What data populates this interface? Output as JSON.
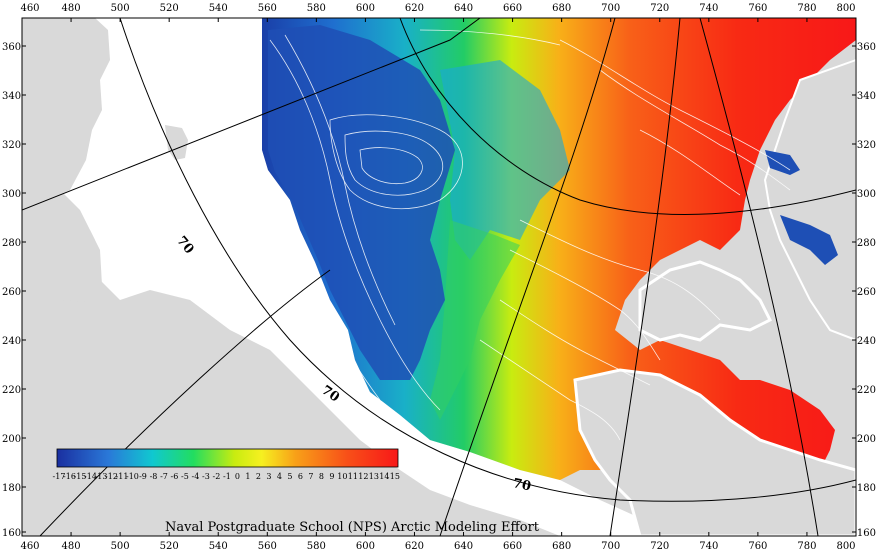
{
  "caption": "Naval Postgraduate School (NPS) Arctic Modeling Effort",
  "axes": {
    "x_ticks": [
      "460",
      "480",
      "500",
      "520",
      "540",
      "560",
      "580",
      "600",
      "620",
      "640",
      "660",
      "680",
      "700",
      "720",
      "740",
      "760",
      "780",
      "800"
    ],
    "y_ticks": [
      "360",
      "340",
      "320",
      "300",
      "280",
      "260",
      "240",
      "220",
      "200",
      "180",
      "160"
    ]
  },
  "latitude_labels": [
    "70",
    "70",
    "70"
  ],
  "colorbar": {
    "labels": [
      "-17",
      "-16",
      "-15",
      "-14",
      "-13",
      "-12",
      "-11",
      "-10",
      "-9",
      "-8",
      "-7",
      "-6",
      "-5",
      "-4",
      "-3",
      "-2",
      "-1",
      "0",
      "1",
      "2",
      "3",
      "4",
      "5",
      "6",
      "7",
      "8",
      "9",
      "10",
      "11",
      "12",
      "13",
      "14",
      "15"
    ],
    "colors": [
      "#1a2fa0",
      "#1f4fbf",
      "#2a78d8",
      "#19a8e0",
      "#10c8d0",
      "#12d6a0",
      "#22dd60",
      "#66e022",
      "#c8ec10",
      "#f6f020",
      "#f8c018",
      "#f89018",
      "#f86018",
      "#f83018",
      "#f81818"
    ]
  },
  "colors": {
    "land": "#d9d9d9",
    "coast": "#9a9a9a",
    "cold": "#1e4fb5",
    "warm": "#ff2a14"
  }
}
